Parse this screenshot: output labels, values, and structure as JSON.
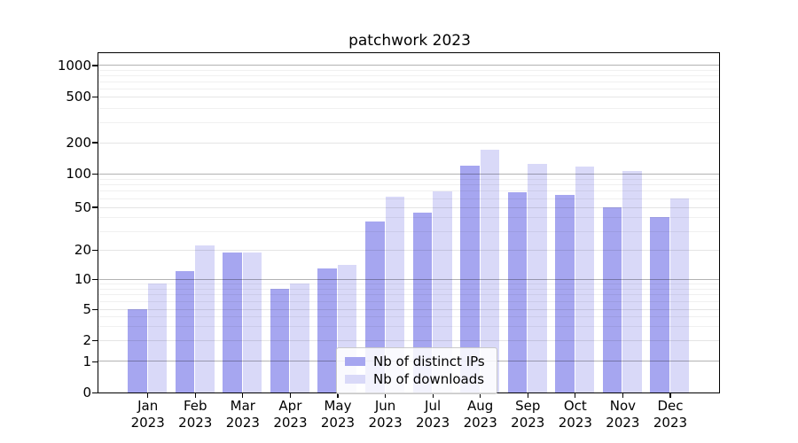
{
  "title": "patchwork 2023",
  "chart_data": {
    "type": "bar",
    "title": "patchwork 2023",
    "categories": [
      "Jan 2023",
      "Feb 2023",
      "Mar 2023",
      "Apr 2023",
      "May 2023",
      "Jun 2023",
      "Jul 2023",
      "Aug 2023",
      "Sep 2023",
      "Oct 2023",
      "Nov 2023",
      "Dec 2023"
    ],
    "x_tick_labels_line1": [
      "Jan",
      "Feb",
      "Mar",
      "Apr",
      "May",
      "Jun",
      "Jul",
      "Aug",
      "Sep",
      "Oct",
      "Nov",
      "Dec"
    ],
    "x_tick_labels_line2": "2023",
    "series": [
      {
        "name": "Nb of distinct IPs",
        "color": "#a6a6f0",
        "values": [
          5,
          12,
          19,
          8,
          13,
          37,
          44,
          120,
          68,
          64,
          50,
          40
        ]
      },
      {
        "name": "Nb of downloads",
        "color": "#d9d9f8",
        "values": [
          9,
          22,
          19,
          9,
          14,
          62,
          69,
          168,
          124,
          118,
          106,
          60
        ]
      }
    ],
    "y_ticks": [
      0,
      1,
      2,
      5,
      10,
      20,
      50,
      100,
      200,
      500,
      1000
    ],
    "y_scale": "log-like (decades compressed toward zero, linear 0-1)",
    "ylim": [
      0,
      1300
    ],
    "grid": true,
    "legend_position": "lower center"
  }
}
